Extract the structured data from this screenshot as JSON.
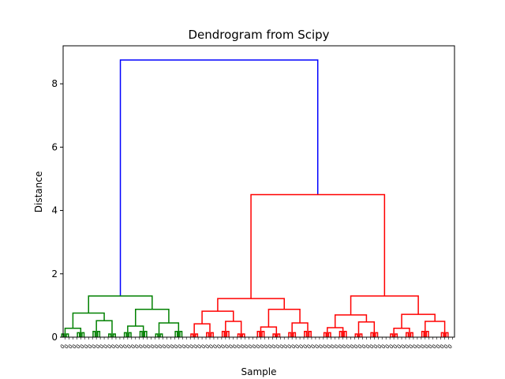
{
  "chart_data": {
    "type": "dendrogram",
    "title": "Dendrogram from Scipy",
    "xlabel": "Sample",
    "ylabel": "Distance",
    "ylim": [
      0,
      9.2
    ],
    "yticks": [
      0,
      2,
      4,
      6,
      8
    ],
    "colors": {
      "blue": "#0000ff",
      "green": "#008000",
      "red": "#ff0000"
    },
    "leaf_count": 100,
    "leaf_label_text": "0",
    "clusters": [
      {
        "name": "root",
        "color": "blue",
        "height": 8.75,
        "children": [
          "green-cluster",
          "red-cluster"
        ]
      },
      {
        "name": "green-cluster",
        "color": "green",
        "height": 1.3,
        "leaves": 32
      },
      {
        "name": "red-cluster",
        "color": "red",
        "height": 4.5,
        "leaves": 68,
        "children": [
          "red-left",
          "red-right"
        ]
      },
      {
        "name": "red-left",
        "color": "red",
        "height": 1.22,
        "leaves": 34
      },
      {
        "name": "red-right",
        "color": "red",
        "height": 1.3,
        "leaves": 34
      }
    ],
    "merges": [
      {
        "id": "root",
        "color": "blue",
        "h": 8.75,
        "left": "g1",
        "right": "r1"
      },
      {
        "id": "g1",
        "color": "green",
        "h": 1.3,
        "left": "g2",
        "right": "g3"
      },
      {
        "id": "g2",
        "color": "green",
        "h": 0.76,
        "left": "g4",
        "right": "g5"
      },
      {
        "id": "g3",
        "color": "green",
        "h": 0.88,
        "left": "g6",
        "right": "g7"
      },
      {
        "id": "g4",
        "color": "green",
        "h": 0.28,
        "left": "L0",
        "right": "L1"
      },
      {
        "id": "g5",
        "color": "green",
        "h": 0.52,
        "left": "L2",
        "right": "L3"
      },
      {
        "id": "g6",
        "color": "green",
        "h": 0.35,
        "left": "L4",
        "right": "L5"
      },
      {
        "id": "g7",
        "color": "green",
        "h": 0.45,
        "left": "L6",
        "right": "L7"
      },
      {
        "id": "r1",
        "color": "red",
        "h": 4.5,
        "left": "rA",
        "right": "rB"
      },
      {
        "id": "rA",
        "color": "red",
        "h": 1.22,
        "left": "rA1",
        "right": "rA2"
      },
      {
        "id": "rB",
        "color": "red",
        "h": 1.3,
        "left": "rB1",
        "right": "rB2"
      },
      {
        "id": "rA1",
        "color": "red",
        "h": 0.82,
        "left": "rA11",
        "right": "rA12"
      },
      {
        "id": "rA2",
        "color": "red",
        "h": 0.88,
        "left": "rA21",
        "right": "rA22"
      },
      {
        "id": "rA11",
        "color": "red",
        "h": 0.42,
        "left": "L8",
        "right": "L9"
      },
      {
        "id": "rA12",
        "color": "red",
        "h": 0.5,
        "left": "L10",
        "right": "L11"
      },
      {
        "id": "rA21",
        "color": "red",
        "h": 0.32,
        "left": "L12",
        "right": "L13"
      },
      {
        "id": "rA22",
        "color": "red",
        "h": 0.45,
        "left": "L14",
        "right": "L15"
      },
      {
        "id": "rB1",
        "color": "red",
        "h": 0.7,
        "left": "rB11",
        "right": "rB12"
      },
      {
        "id": "rB2",
        "color": "red",
        "h": 0.72,
        "left": "rB21",
        "right": "rB22"
      },
      {
        "id": "rB11",
        "color": "red",
        "h": 0.3,
        "left": "L16",
        "right": "L17"
      },
      {
        "id": "rB12",
        "color": "red",
        "h": 0.48,
        "left": "L18",
        "right": "L19"
      },
      {
        "id": "rB21",
        "color": "red",
        "h": 0.28,
        "left": "L20",
        "right": "L21"
      },
      {
        "id": "rB22",
        "color": "red",
        "h": 0.5,
        "left": "L22",
        "right": "L23"
      }
    ],
    "leaves": [
      {
        "id": "L0",
        "color": "green",
        "pos": 0.5
      },
      {
        "id": "L1",
        "color": "green",
        "pos": 4.5
      },
      {
        "id": "L2",
        "color": "green",
        "pos": 8.5
      },
      {
        "id": "L3",
        "color": "green",
        "pos": 12.5
      },
      {
        "id": "L4",
        "color": "green",
        "pos": 16.5
      },
      {
        "id": "L5",
        "color": "green",
        "pos": 20.5
      },
      {
        "id": "L6",
        "color": "green",
        "pos": 24.5
      },
      {
        "id": "L7",
        "color": "green",
        "pos": 29.5
      },
      {
        "id": "L8",
        "color": "red",
        "pos": 33.5
      },
      {
        "id": "L9",
        "color": "red",
        "pos": 37.5
      },
      {
        "id": "L10",
        "color": "red",
        "pos": 41.5
      },
      {
        "id": "L11",
        "color": "red",
        "pos": 45.5
      },
      {
        "id": "L12",
        "color": "red",
        "pos": 50.5
      },
      {
        "id": "L13",
        "color": "red",
        "pos": 54.5
      },
      {
        "id": "L14",
        "color": "red",
        "pos": 58.5
      },
      {
        "id": "L15",
        "color": "red",
        "pos": 62.5
      },
      {
        "id": "L16",
        "color": "red",
        "pos": 67.5
      },
      {
        "id": "L17",
        "color": "red",
        "pos": 71.5
      },
      {
        "id": "L18",
        "color": "red",
        "pos": 75.5
      },
      {
        "id": "L19",
        "color": "red",
        "pos": 79.5
      },
      {
        "id": "L20",
        "color": "red",
        "pos": 84.5
      },
      {
        "id": "L21",
        "color": "red",
        "pos": 88.5
      },
      {
        "id": "L22",
        "color": "red",
        "pos": 92.5
      },
      {
        "id": "L23",
        "color": "red",
        "pos": 97.5
      }
    ]
  }
}
